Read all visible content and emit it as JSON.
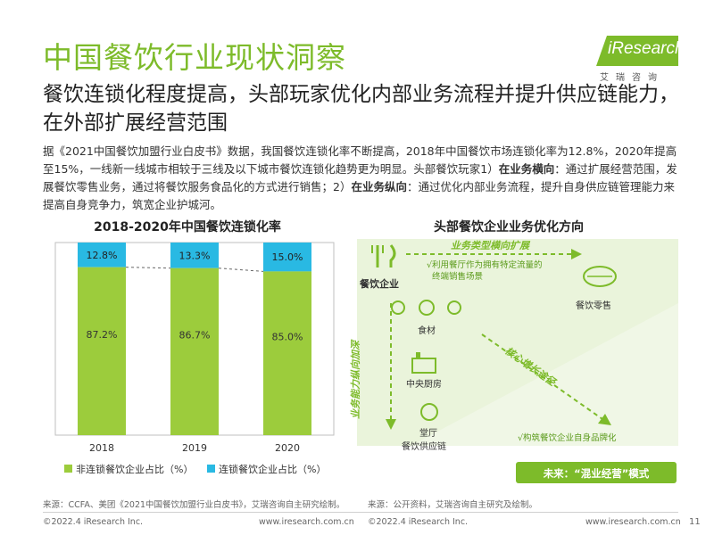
{
  "header": {
    "title": "中国餐饮行业现状洞察",
    "logo_text": "iResearch",
    "logo_sub": "艾瑞咨询"
  },
  "subtitle": "餐饮连锁化程度提高，头部玩家优化内部业务流程并提升供应链能力，在外部扩展经营范围",
  "body": {
    "p1": "据《2021中国餐饮加盟行业白皮书》数据，我国餐饮连锁化率不断提高，2018年中国餐饮市场连锁化率为12.8%，2020年提高至15%，一线新一线城市相较于三线及以下城市餐饮连锁化趋势更为明显。头部餐饮玩家1）",
    "b1": "在业务横向",
    "p2": "：通过扩展经营范围，发展餐饮零售业务，通过将餐饮服务食品化的方式进行销售；2）",
    "b2": "在业务纵向",
    "p3": "：通过优化内部业务流程，提升自身供应链管理能力来提高自身竞争力，筑宽企业护城河。"
  },
  "chart_data": {
    "type": "bar",
    "title": "2018-2020年中国餐饮连锁化率",
    "categories": [
      "2018",
      "2019",
      "2020"
    ],
    "series": [
      {
        "name": "非连锁餐饮企业占比（%）",
        "color": "#9ccc3c",
        "values": [
          87.2,
          86.7,
          85.0
        ],
        "labels": [
          "87.2%",
          "86.7%",
          "85.0%"
        ]
      },
      {
        "name": "连锁餐饮企业占比（%）",
        "color": "#29b9e3",
        "values": [
          12.8,
          13.3,
          15.0
        ],
        "labels": [
          "12.8%",
          "13.3%",
          "15.0%"
        ]
      }
    ],
    "stacked": true,
    "ylim": [
      0,
      100
    ],
    "grid": false,
    "legend": "bottom"
  },
  "diagram": {
    "title": "头部餐饮企业业务优化方向",
    "horizontal_label": "业务类型横向扩展",
    "vertical_label": "业务能力纵向加深",
    "core_label": "核心增长途径",
    "node_start": "餐饮企业",
    "node_retail": "餐饮零售",
    "node_ingredients": "食材",
    "node_kitchen": "中央厨房",
    "node_hall": "堂厅",
    "node_supply": "餐饮供应链",
    "note_horizontal": "√利用餐厅作为拥有特定流量的终端销售场景",
    "note_vertical": "√构筑餐饮企业自身品牌化",
    "future": "未来：“混业经营”模式"
  },
  "sources": {
    "left": "来源：CCFA、美团《2021中国餐饮加盟行业白皮书》，艾瑞咨询自主研究绘制。",
    "right": "来源：公开资料，艾瑞咨询自主研究及绘制。"
  },
  "footer": {
    "copyright": "©2022.4 iResearch Inc.",
    "url": "www.iresearch.com.cn",
    "page": "11"
  },
  "colors": {
    "accent": "#7dbb2a",
    "blue": "#29b9e3",
    "diagram_bg": "#f0f7e6",
    "future_box": "#7dbb2a"
  }
}
